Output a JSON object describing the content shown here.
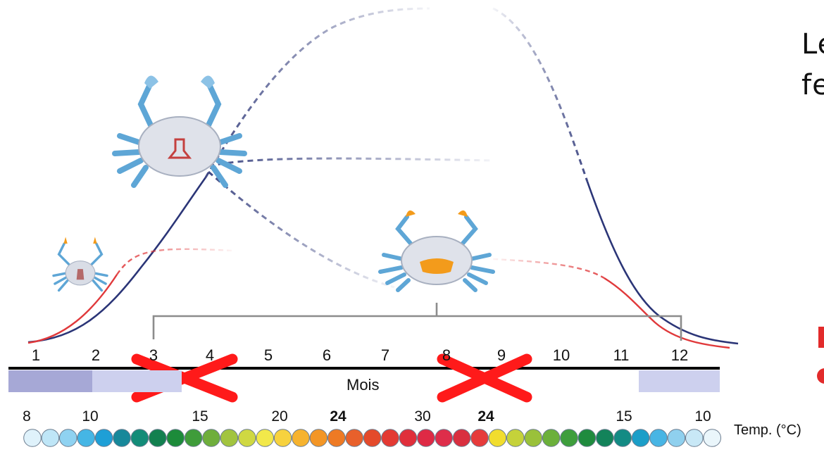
{
  "title_fragments": [
    "Le",
    "fe"
  ],
  "months": [
    "1",
    "2",
    "3",
    "4",
    "5",
    "6",
    "7",
    "8",
    "9",
    "10",
    "11",
    "12"
  ],
  "month_axis_label": "Mois",
  "temperature_labels": [
    {
      "text": "8",
      "bold": false
    },
    {
      "text": "10",
      "bold": false
    },
    {
      "text": "15",
      "bold": false
    },
    {
      "text": "20",
      "bold": false
    },
    {
      "text": "24",
      "bold": true
    },
    {
      "text": "30",
      "bold": false
    },
    {
      "text": "24",
      "bold": true
    },
    {
      "text": "15",
      "bold": false
    },
    {
      "text": "10",
      "bold": false
    }
  ],
  "temperature_axis_label": "Temp. (°C)",
  "colors": {
    "navy_curve": "#2b3577",
    "red_curve": "#e0393b",
    "band_dark": "#a6a8d6",
    "band_light": "#cdd0ee",
    "cross": "#ff1a1a",
    "bracket": "#8c8c8c",
    "crab_blue": "#5ea6d6",
    "crab_shell": "#d9dde6",
    "egg_mass": "#f39b1b"
  },
  "temperature_scale_colors": [
    "#dff2fb",
    "#bfe6f7",
    "#8fd2f1",
    "#45b6e5",
    "#1e9fd6",
    "#17889a",
    "#138c78",
    "#12804f",
    "#1c8b3a",
    "#3f9c3a",
    "#6fae3c",
    "#a2c43f",
    "#cfd842",
    "#f2e84a",
    "#f7d23e",
    "#f6b32f",
    "#f39626",
    "#ee7a24",
    "#e8602b",
    "#e44a2b",
    "#e33a33",
    "#e02f3b",
    "#de2a45",
    "#de2d4a",
    "#d92f3f",
    "#e63b3b",
    "#f1dd2e",
    "#c5d23a",
    "#9ac13a",
    "#6cb03b",
    "#3e9e3c",
    "#1f8b3e",
    "#13835a",
    "#138b84",
    "#1b9ec8",
    "#48b5e4",
    "#8fd0ee",
    "#c8e8f6",
    "#eaf6fb"
  ],
  "icons": [
    "crab-small-icon",
    "crab-large-male-icon",
    "crab-berried-female-icon",
    "cross-icon"
  ]
}
